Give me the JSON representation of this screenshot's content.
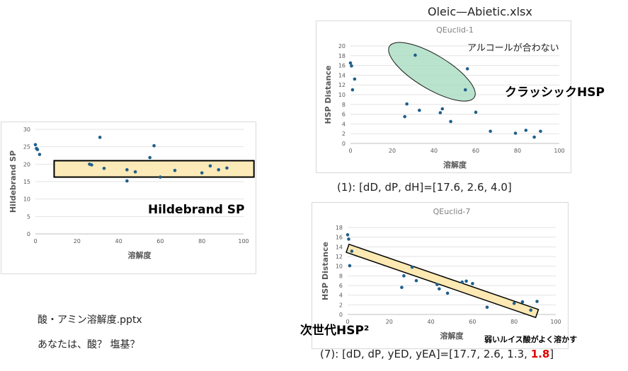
{
  "file_title": "Oleic—Abietic.xlsx",
  "labels": {
    "hildebrand": "Hildebrand SP",
    "classic": "クラッシックHSP",
    "next_gen": "次世代HSP²",
    "alcohol_note": "アルコールが合わない",
    "weak_lewis": "弱いルイス酸がよく溶かす",
    "pptx": "酸・アミン溶解度.pptx",
    "question": "あなたは、酸？ 塩基？",
    "caption1": "(1): [dD, dP, dH]=[17.6, 2.6, 4.0]",
    "caption7_prefix": "(7): [dD, dP, yED, yEA]=[17.7, 2.6, 1.3, ",
    "caption7_highlight": "1.8",
    "caption7_suffix": "]"
  },
  "colors": {
    "marker": "#1f5f8b",
    "band_fill": "#fbe5a6",
    "ellipse_fill": "#a8dcc0",
    "highlight": "#e00000"
  },
  "chart_data": [
    {
      "type": "scatter",
      "title": "",
      "xlabel": "溶解度",
      "ylabel": "Hildebrand SP",
      "xlim": [
        0,
        100
      ],
      "ylim": [
        0,
        30
      ],
      "xticks": [
        0,
        20,
        40,
        60,
        80,
        100
      ],
      "yticks": [
        0,
        5,
        10,
        15,
        20,
        25,
        30
      ],
      "x": [
        0,
        0.5,
        1,
        2,
        26,
        27,
        31,
        33,
        44,
        44,
        48,
        55,
        57,
        60,
        67,
        80,
        84,
        88,
        92
      ],
      "y": [
        25.6,
        24.5,
        24.2,
        22.8,
        20.0,
        19.8,
        27.7,
        18.8,
        18.4,
        15.2,
        17.8,
        21.9,
        25.3,
        16.3,
        18.2,
        17.5,
        19.5,
        18.4,
        18.9
      ],
      "annotation": "band"
    },
    {
      "type": "scatter",
      "title": "QEuclid-1",
      "xlabel": "溶解度",
      "ylabel": "HSP Distance",
      "xlim": [
        0,
        100
      ],
      "ylim": [
        0,
        20
      ],
      "xticks": [
        0,
        20,
        40,
        60,
        80,
        100
      ],
      "yticks": [
        0,
        2,
        4,
        6,
        8,
        10,
        12,
        14,
        16,
        18,
        20
      ],
      "x": [
        0,
        0.5,
        1,
        2,
        26,
        27,
        31,
        33,
        43,
        44,
        48,
        55,
        56,
        60,
        67,
        79,
        84,
        88,
        91
      ],
      "y": [
        16.5,
        15.9,
        11.0,
        13.2,
        5.5,
        8.1,
        18.1,
        6.8,
        6.3,
        7.1,
        4.5,
        11.0,
        15.3,
        6.4,
        2.5,
        2.1,
        2.7,
        1.3,
        2.5
      ],
      "annotation": "ellipse"
    },
    {
      "type": "scatter",
      "title": "QEuclid-7",
      "xlabel": "溶解度",
      "ylabel": "HSP Distance",
      "xlim": [
        0,
        100
      ],
      "ylim": [
        0,
        18
      ],
      "xticks": [
        0,
        20,
        40,
        60,
        80,
        100
      ],
      "yticks": [
        0,
        2,
        4,
        6,
        8,
        10,
        12,
        14,
        16,
        18
      ],
      "x": [
        0,
        0.5,
        1,
        2,
        26,
        27,
        31,
        33,
        43,
        44,
        48,
        55,
        57,
        60,
        67,
        80,
        84,
        88,
        91
      ],
      "y": [
        16.5,
        15.6,
        10.1,
        13.1,
        5.6,
        8.0,
        9.8,
        7.0,
        6.2,
        5.3,
        4.4,
        6.7,
        6.9,
        6.4,
        1.5,
        2.3,
        2.6,
        0.9,
        2.7
      ],
      "annotation": "band"
    }
  ]
}
